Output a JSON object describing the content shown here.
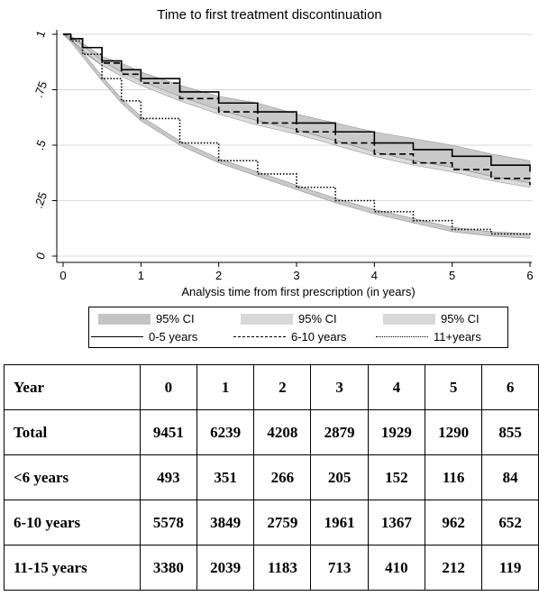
{
  "chart_data": {
    "type": "line",
    "title": "Time to first treatment discontinuation",
    "xlabel": "Analysis time from first prescription (in years)",
    "ylabel": "",
    "xlim": [
      0,
      6
    ],
    "ylim": [
      0,
      1
    ],
    "x_ticks": [
      0,
      1,
      2,
      3,
      4,
      5,
      6
    ],
    "y_ticks": [
      0,
      0.25,
      0.5,
      0.75,
      1
    ],
    "y_tick_labels": [
      "0",
      ".25",
      ".5",
      ".75",
      "1"
    ],
    "x_tick_labels": [
      "0",
      "1",
      "2",
      "3",
      "4",
      "5",
      "6"
    ],
    "grid": true,
    "legend_position": "bottom",
    "legend": {
      "ci_labels": [
        "95% CI",
        "95% CI",
        "95% CI"
      ],
      "line_labels": [
        "0-5 years",
        "6-10 years",
        "11+years"
      ]
    },
    "series": [
      {
        "name": "0-5 years",
        "line_style": "solid",
        "x": [
          0,
          0.1,
          0.25,
          0.5,
          0.75,
          1,
          1.5,
          2,
          2.5,
          3,
          3.5,
          4,
          4.5,
          5,
          5.5,
          6
        ],
        "y": [
          1,
          0.98,
          0.94,
          0.88,
          0.84,
          0.8,
          0.74,
          0.69,
          0.65,
          0.6,
          0.56,
          0.51,
          0.48,
          0.45,
          0.41,
          0.38
        ],
        "ci_low": [
          1,
          0.97,
          0.92,
          0.86,
          0.82,
          0.78,
          0.71,
          0.66,
          0.61,
          0.56,
          0.52,
          0.47,
          0.43,
          0.4,
          0.36,
          0.33
        ],
        "ci_high": [
          1,
          0.99,
          0.96,
          0.9,
          0.87,
          0.83,
          0.77,
          0.72,
          0.69,
          0.64,
          0.6,
          0.56,
          0.53,
          0.5,
          0.46,
          0.43
        ]
      },
      {
        "name": "6-10 years",
        "line_style": "dashed",
        "x": [
          0,
          0.1,
          0.25,
          0.5,
          0.75,
          1,
          1.5,
          2,
          2.5,
          3,
          3.5,
          4,
          4.5,
          5,
          5.5,
          6
        ],
        "y": [
          1,
          0.98,
          0.94,
          0.87,
          0.82,
          0.78,
          0.71,
          0.65,
          0.6,
          0.56,
          0.51,
          0.46,
          0.42,
          0.39,
          0.35,
          0.32
        ],
        "ci_low": [
          1,
          0.975,
          0.93,
          0.86,
          0.81,
          0.77,
          0.7,
          0.64,
          0.59,
          0.55,
          0.5,
          0.45,
          0.41,
          0.38,
          0.34,
          0.31
        ],
        "ci_high": [
          1,
          0.985,
          0.95,
          0.88,
          0.83,
          0.79,
          0.72,
          0.66,
          0.61,
          0.57,
          0.52,
          0.47,
          0.43,
          0.4,
          0.36,
          0.33
        ]
      },
      {
        "name": "11+years",
        "line_style": "dotted",
        "x": [
          0,
          0.1,
          0.25,
          0.5,
          0.75,
          1,
          1.5,
          2,
          2.5,
          3,
          3.5,
          4,
          4.5,
          5,
          5.5,
          6
        ],
        "y": [
          1,
          0.97,
          0.91,
          0.8,
          0.7,
          0.62,
          0.51,
          0.43,
          0.37,
          0.31,
          0.25,
          0.2,
          0.16,
          0.12,
          0.1,
          0.09
        ],
        "ci_low": [
          1,
          0.965,
          0.9,
          0.79,
          0.69,
          0.61,
          0.5,
          0.42,
          0.36,
          0.3,
          0.24,
          0.19,
          0.15,
          0.11,
          0.09,
          0.08
        ],
        "ci_high": [
          1,
          0.975,
          0.92,
          0.81,
          0.71,
          0.63,
          0.52,
          0.44,
          0.38,
          0.32,
          0.26,
          0.21,
          0.17,
          0.13,
          0.11,
          0.1
        ]
      }
    ]
  },
  "risk_table": {
    "columns": [
      "Year",
      "0",
      "1",
      "2",
      "3",
      "4",
      "5",
      "6"
    ],
    "rows": [
      {
        "label": "Total",
        "values": [
          "9451",
          "6239",
          "4208",
          "2879",
          "1929",
          "1290",
          "855"
        ]
      },
      {
        "label": "<6 years",
        "values": [
          "493",
          "351",
          "266",
          "205",
          "152",
          "116",
          "84"
        ]
      },
      {
        "label": "6-10 years",
        "values": [
          "5578",
          "3849",
          "2759",
          "1961",
          "1367",
          "962",
          "652"
        ]
      },
      {
        "label": "11-15 years",
        "values": [
          "3380",
          "2039",
          "1183",
          "713",
          "410",
          "212",
          "119"
        ]
      }
    ]
  },
  "colors": {
    "ci_band_dark": "#c4c4c4",
    "ci_band_light": "#d8d8d8",
    "grid": "#d9d9d9",
    "line": "#000000"
  }
}
